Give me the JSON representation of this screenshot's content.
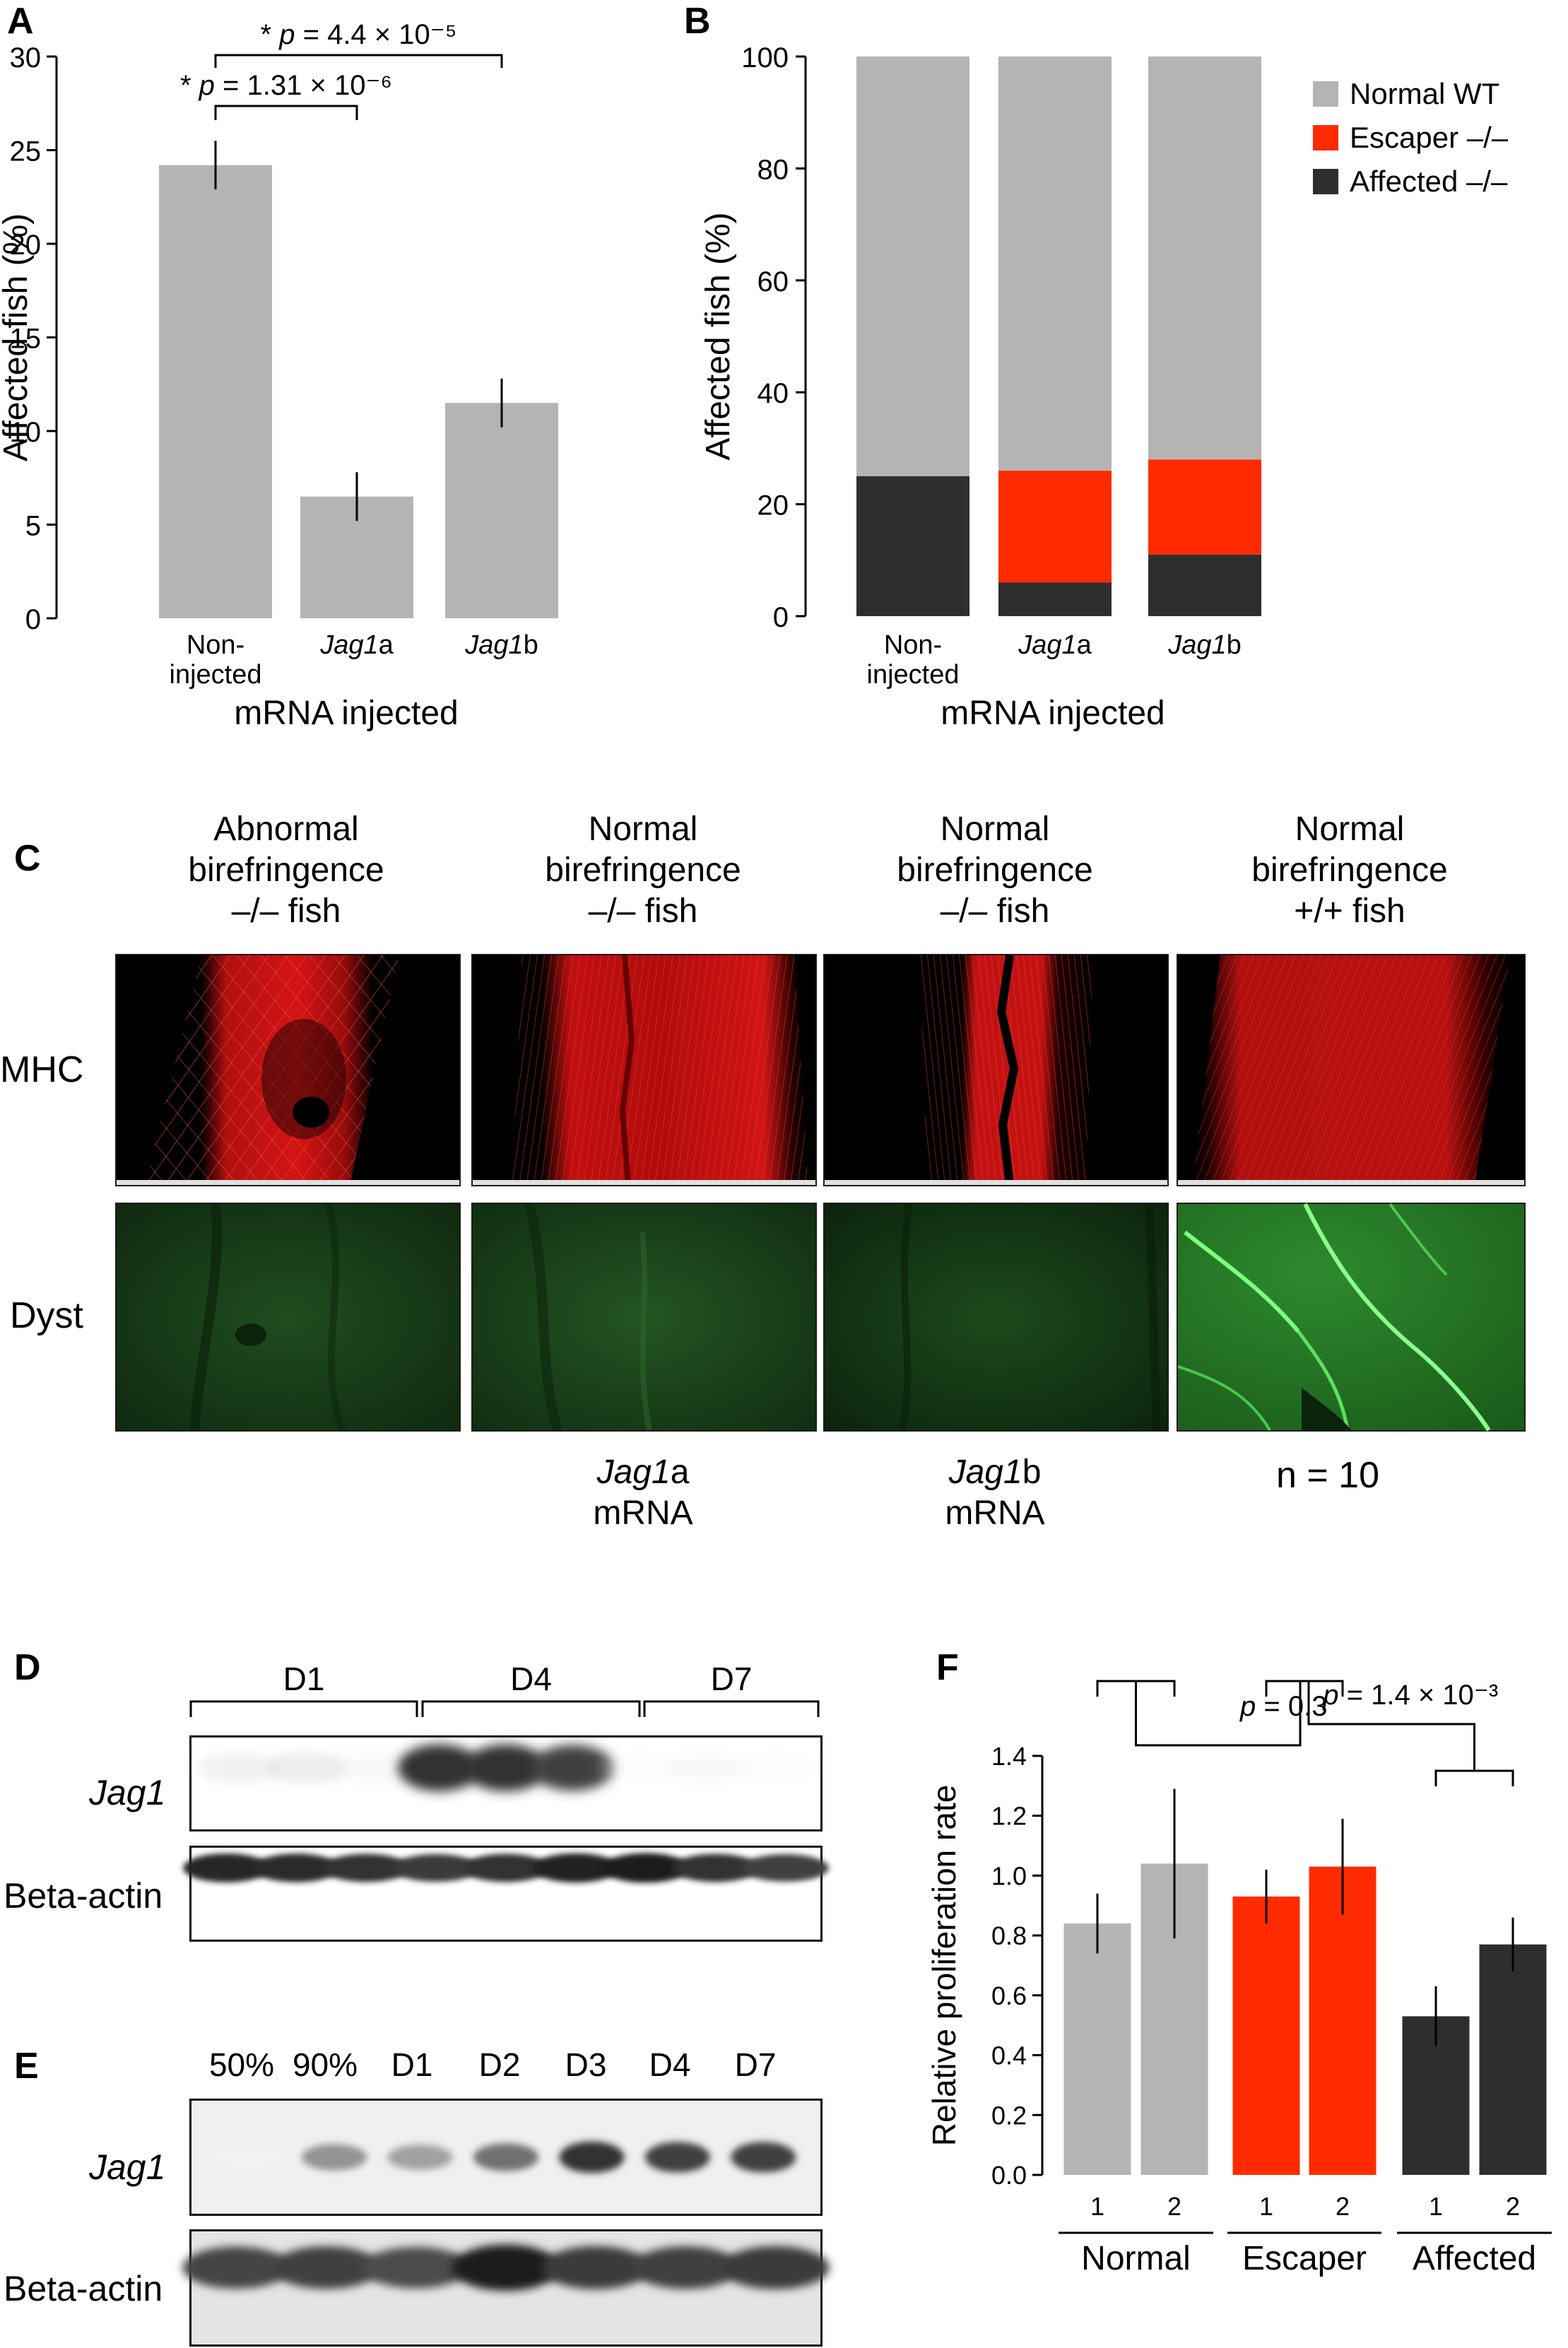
{
  "panels": {
    "A": {
      "label": "A"
    },
    "B": {
      "label": "B"
    },
    "C": {
      "label": "C"
    },
    "D": {
      "label": "D"
    },
    "E": {
      "label": "E"
    },
    "F": {
      "label": "F"
    }
  },
  "colors": {
    "gray": "#b4b4b4",
    "red": "#ff2a00",
    "dark": "#2e2e2e"
  },
  "chart_data": [
    {
      "panel": "A",
      "type": "bar",
      "categories": [
        "Non-injected",
        "Jag1a",
        "Jag1b"
      ],
      "category_lines": [
        [
          "Non-",
          "injected"
        ],
        [
          "Jag1a"
        ],
        [
          "Jag1b"
        ]
      ],
      "values": [
        24.2,
        6.5,
        11.5
      ],
      "errors": [
        1.3,
        1.3,
        1.3
      ],
      "ylabel": "Affected fish (%)",
      "xlabel": "mRNA injected",
      "ylim": [
        0,
        30
      ],
      "yticks": [
        0,
        5,
        10,
        15,
        20,
        25,
        30
      ],
      "annotations": [
        {
          "from": 0,
          "to": 2,
          "text": "* p = 4.4 × 10⁻⁵"
        },
        {
          "from": 0,
          "to": 1,
          "text": "* p = 1.31 × 10⁻⁶"
        }
      ]
    },
    {
      "panel": "B",
      "type": "bar",
      "stacked": true,
      "categories": [
        "Non-injected",
        "Jag1a",
        "Jag1b"
      ],
      "category_lines": [
        [
          "Non-",
          "injected"
        ],
        [
          "Jag1a"
        ],
        [
          "Jag1b"
        ]
      ],
      "series": [
        {
          "name": "Affected –/–",
          "color": "dark",
          "values": [
            25,
            6,
            11
          ]
        },
        {
          "name": "Escaper –/–",
          "color": "red",
          "values": [
            0,
            20,
            17
          ]
        },
        {
          "name": "Normal WT",
          "color": "gray",
          "values": [
            75,
            74,
            72
          ]
        }
      ],
      "legend_order": [
        "Normal WT",
        "Escaper –/–",
        "Affected –/–"
      ],
      "legend": "top-right",
      "ylabel": "Affected fish (%)",
      "xlabel": "mRNA injected",
      "ylim": [
        0,
        100
      ],
      "yticks": [
        0,
        20,
        40,
        60,
        80,
        100
      ]
    },
    {
      "panel": "F",
      "type": "bar",
      "categories": [
        "1",
        "2",
        "1",
        "2",
        "1",
        "2"
      ],
      "groups": [
        "Normal",
        "Escaper",
        "Affected"
      ],
      "group_colors": [
        "gray",
        "red",
        "dark"
      ],
      "values": [
        0.84,
        1.04,
        0.93,
        1.03,
        0.53,
        0.77
      ],
      "errors": [
        0.1,
        0.25,
        0.09,
        0.16,
        0.1,
        0.09
      ],
      "ylabel": "Relative proliferation rate",
      "ylim": [
        0,
        1.4
      ],
      "yticks": [
        "0.0",
        "0.2",
        "0.4",
        "0.6",
        "0.8",
        "1.0",
        "1.2",
        "1.4"
      ],
      "annotations": [
        {
          "between": [
            "Normal",
            "Escaper"
          ],
          "text": "p = 0.3"
        },
        {
          "between": [
            "Escaper",
            "Affected"
          ],
          "text": "p = 1.4 × 10⁻³"
        }
      ]
    }
  ],
  "panelC": {
    "columns": [
      {
        "title": [
          "Abnormal",
          "birefringence",
          "–/– fish"
        ],
        "caption": [
          "",
          ""
        ]
      },
      {
        "title": [
          "Normal",
          "birefringence",
          "–/– fish"
        ],
        "caption": [
          "Jag1a",
          "mRNA"
        ]
      },
      {
        "title": [
          "Normal",
          "birefringence",
          "–/– fish"
        ],
        "caption": [
          "Jag1b",
          "mRNA"
        ]
      },
      {
        "title": [
          "Normal",
          "birefringence",
          "+/+ fish"
        ],
        "caption": [
          "",
          ""
        ]
      }
    ],
    "rows": [
      "MHC",
      "Dyst"
    ],
    "n_label": "n = 10"
  },
  "panelD": {
    "groups": [
      "D1",
      "D4",
      "D7"
    ],
    "rows": [
      "Jag1",
      "Beta-actin"
    ],
    "jag1_intensity": [
      0.15,
      0.18,
      0.08,
      0.85,
      0.85,
      0.8,
      0.04,
      0.08,
      0.04
    ],
    "actin_intensity": [
      0.9,
      0.88,
      0.85,
      0.82,
      0.85,
      0.92,
      0.95,
      0.85,
      0.8
    ]
  },
  "panelE": {
    "lanes": [
      "50%",
      "90%",
      "D1",
      "D2",
      "D3",
      "D4",
      "D7"
    ],
    "rows": [
      "Jag1",
      "Beta-actin"
    ],
    "jag1_intensity": [
      0.02,
      0.55,
      0.5,
      0.65,
      0.85,
      0.8,
      0.8
    ],
    "actin_intensity": [
      0.78,
      0.8,
      0.75,
      0.95,
      0.82,
      0.8,
      0.82
    ]
  }
}
